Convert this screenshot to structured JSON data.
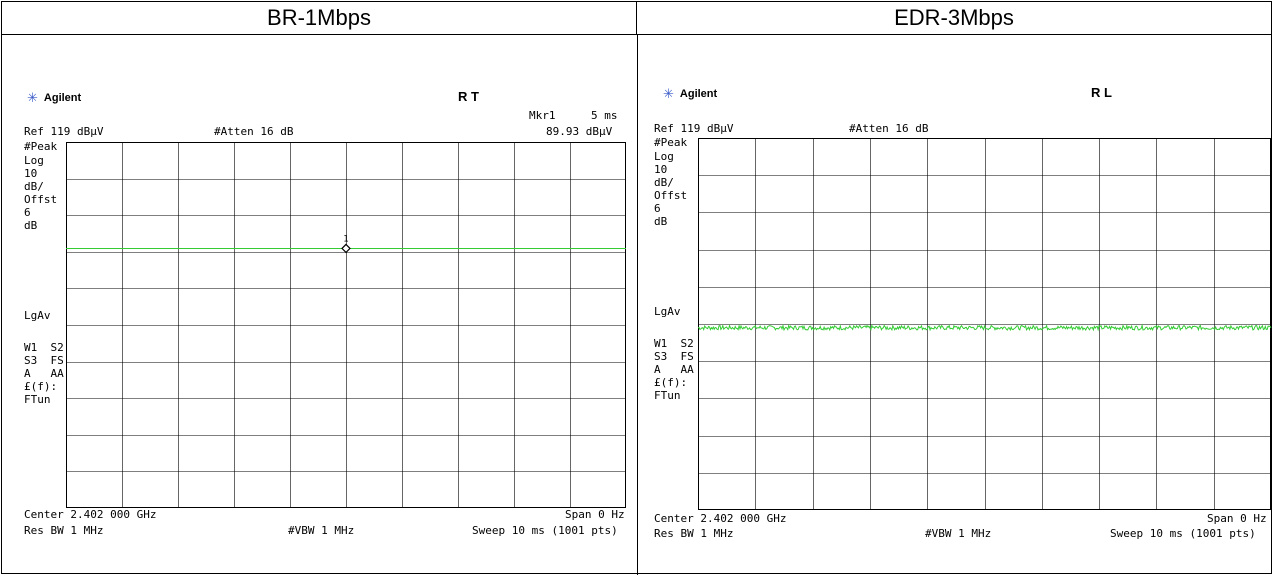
{
  "headers": {
    "left": "BR-1Mbps",
    "right": "EDR-3Mbps"
  },
  "colors": {
    "trace": "#33cc33",
    "grid": "#000000",
    "logo_star": "#3b5cc9"
  },
  "panels": [
    {
      "logo": "Agilent",
      "status": "R   T",
      "marker_label": "Mkr1",
      "marker_time": "5 ms",
      "marker_value": "89.93 dBµV",
      "ref": "Ref 119 dBµV",
      "atten": "#Atten 16 dB",
      "side_labels": [
        "#Peak",
        "Log",
        "10",
        "dB/",
        "Offst",
        "6",
        "dB"
      ],
      "lgav": "LgAv",
      "side_labels2": [
        "W1  S2",
        "S3  FS",
        "A   AA",
        "£(f):",
        "FTun"
      ],
      "center": "Center 2.402 000 GHz",
      "span": "Span 0 Hz",
      "res_bw": "Res BW 1 MHz",
      "vbw": "#VBW 1 MHz",
      "sweep": "Sweep 10 ms (1001 pts)",
      "marker_number": "1"
    },
    {
      "logo": "Agilent",
      "status": "R L",
      "ref": "Ref 119 dBµV",
      "atten": "#Atten 16 dB",
      "side_labels": [
        "#Peak",
        "Log",
        "10",
        "dB/",
        "Offst",
        "6",
        "dB"
      ],
      "lgav": "LgAv",
      "side_labels2": [
        "W1  S2",
        "S3  FS",
        "A   AA",
        "£(f):",
        "FTun"
      ],
      "center": "Center 2.402 000 GHz",
      "span": "Span 0 Hz",
      "res_bw": "Res BW 1 MHz",
      "vbw": "#VBW 1 MHz",
      "sweep": "Sweep 10 ms (1001 pts)"
    }
  ],
  "chart_data": [
    {
      "type": "line",
      "x_unit": "ms",
      "xlim": [
        0,
        10
      ],
      "ylim": [
        19,
        119
      ],
      "y_unit": "dBµV",
      "grid": true,
      "series": [
        {
          "x": [
            0,
            10
          ],
          "y": [
            89.9,
            89.9
          ]
        }
      ],
      "markers": [
        {
          "label": "1",
          "x": 5,
          "y": 89.93
        }
      ]
    },
    {
      "type": "line",
      "x_unit": "ms",
      "xlim": [
        0,
        10
      ],
      "ylim": [
        19,
        119
      ],
      "y_unit": "dBµV",
      "grid": true,
      "series": [
        {
          "level": 68,
          "noise": 0.6,
          "x": [
            0,
            10
          ]
        }
      ]
    }
  ]
}
